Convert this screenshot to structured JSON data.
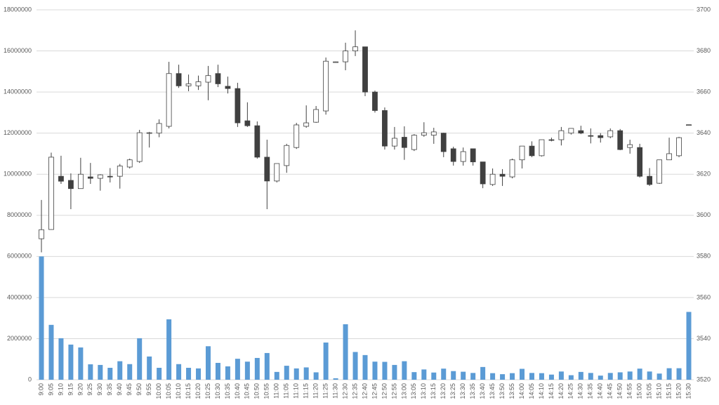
{
  "chart_data": {
    "type": "candlestick",
    "categories": [
      "9:00",
      "9:05",
      "9:10",
      "9:15",
      "9:20",
      "9:25",
      "9:30",
      "9:35",
      "9:40",
      "9:45",
      "9:50",
      "9:55",
      "10:00",
      "10:05",
      "10:10",
      "10:15",
      "10:20",
      "10:25",
      "10:30",
      "10:35",
      "10:40",
      "10:45",
      "10:50",
      "10:55",
      "11:00",
      "11:05",
      "11:10",
      "11:15",
      "11:20",
      "11:25",
      "11:30",
      "12:30",
      "12:35",
      "12:40",
      "12:45",
      "12:50",
      "12:55",
      "13:00",
      "13:05",
      "13:10",
      "13:15",
      "13:20",
      "13:25",
      "13:30",
      "13:35",
      "13:40",
      "13:45",
      "13:50",
      "13:55",
      "14:00",
      "14:05",
      "14:10",
      "14:15",
      "14:20",
      "14:25",
      "14:30",
      "14:35",
      "14:40",
      "14:45",
      "14:50",
      "14:55",
      "15:00",
      "15:05",
      "15:10",
      "15:15",
      "15:20",
      "15:30"
    ],
    "volume": {
      "color": "#5b9bd5",
      "values": [
        6000000,
        2670000,
        2020000,
        1710000,
        1570000,
        750000,
        720000,
        580000,
        900000,
        760000,
        2020000,
        1130000,
        580000,
        2940000,
        760000,
        580000,
        550000,
        1630000,
        820000,
        650000,
        1020000,
        880000,
        1060000,
        1300000,
        380000,
        680000,
        550000,
        600000,
        360000,
        1810000,
        70000,
        2700000,
        1350000,
        1200000,
        880000,
        870000,
        720000,
        900000,
        370000,
        500000,
        350000,
        540000,
        420000,
        390000,
        330000,
        620000,
        320000,
        270000,
        320000,
        530000,
        330000,
        320000,
        250000,
        400000,
        220000,
        380000,
        330000,
        200000,
        330000,
        360000,
        400000,
        540000,
        400000,
        300000,
        560000,
        560000,
        3300000
      ]
    },
    "ohlc": {
      "up_color": "#ffffff",
      "down_color": "#404040",
      "line_color": "#404040",
      "open": [
        3588.6,
        3593.1,
        3619,
        3617,
        3613,
        3618.7,
        3618,
        3619,
        3619,
        3623.5,
        3626.2,
        3640,
        3640,
        3643.3,
        3669,
        3663,
        3663,
        3664.8,
        3669,
        3662.8,
        3661.7,
        3646,
        3643.6,
        3628.3,
        3616.7,
        3624.2,
        3633,
        3643.3,
        3645.3,
        3650.8,
        3674.6,
        3674.7,
        3680,
        3682,
        3660,
        3651,
        3633.7,
        3638,
        3632,
        3639,
        3639,
        3640,
        3632.4,
        3626.2,
        3632.4,
        3626,
        3615,
        3620,
        3618.7,
        3627,
        3633.7,
        3629,
        3636.8,
        3636.8,
        3640,
        3641.2,
        3638.8,
        3638.8,
        3638.2,
        3641.2,
        3633,
        3633,
        3619,
        3615.6,
        3627,
        3629,
        3644
      ],
      "high": [
        3607.5,
        3630.5,
        3629,
        3620.4,
        3628,
        3625.5,
        3620,
        3623,
        3625,
        3627.6,
        3641.6,
        3640.6,
        3646.7,
        3674.7,
        3673.3,
        3668.5,
        3668,
        3672.7,
        3673.3,
        3667.5,
        3664.5,
        3655,
        3645.7,
        3636.8,
        3625.2,
        3634.8,
        3645,
        3653.5,
        3653.2,
        3676.8,
        3674.8,
        3684,
        3690,
        3682,
        3660.7,
        3652.5,
        3643,
        3643.3,
        3639.5,
        3645.3,
        3642.6,
        3640.2,
        3633.4,
        3633,
        3632.4,
        3626,
        3622.8,
        3622.5,
        3627.6,
        3633.7,
        3636,
        3636.8,
        3637.8,
        3643,
        3642.3,
        3643.6,
        3642.3,
        3640,
        3642.3,
        3642,
        3636.8,
        3634.8,
        3623,
        3627,
        3637.8,
        3638.2,
        3644.1
      ],
      "low": [
        3582,
        3593,
        3615.3,
        3603,
        3613,
        3615.3,
        3612,
        3616,
        3613,
        3622.8,
        3625.5,
        3633,
        3638,
        3642.3,
        3662,
        3660.4,
        3661,
        3656,
        3662.4,
        3659.3,
        3643,
        3643,
        3627.6,
        3603,
        3616,
        3620.7,
        3632.3,
        3642.6,
        3645,
        3649,
        3674.5,
        3670.6,
        3677.5,
        3658,
        3650,
        3632,
        3632,
        3627,
        3631.3,
        3638.2,
        3634.8,
        3628.3,
        3624.2,
        3624.2,
        3624.2,
        3613.2,
        3614.3,
        3614.3,
        3618,
        3622.8,
        3628.3,
        3628.6,
        3636,
        3634,
        3639.3,
        3639.5,
        3635,
        3635.4,
        3637.5,
        3631.7,
        3630,
        3618.4,
        3614.3,
        3615.3,
        3627,
        3628.3,
        3644
      ],
      "close": [
        3593,
        3628.3,
        3616.6,
        3613,
        3620,
        3618,
        3619.7,
        3618.7,
        3624,
        3627,
        3640.2,
        3640.2,
        3644.7,
        3669,
        3663,
        3664,
        3665,
        3668,
        3664,
        3661.7,
        3645,
        3643.6,
        3628.3,
        3616.7,
        3625.2,
        3634,
        3644,
        3645,
        3651.5,
        3675,
        3674.7,
        3680,
        3682,
        3660,
        3651,
        3633.7,
        3637.5,
        3633,
        3639,
        3640.2,
        3640.6,
        3631,
        3626.2,
        3631,
        3626,
        3615.3,
        3620,
        3619,
        3627,
        3633.7,
        3629,
        3636.8,
        3636.5,
        3641.2,
        3642.3,
        3640,
        3638.5,
        3637.8,
        3641.2,
        3632,
        3634.4,
        3619,
        3615,
        3627,
        3630,
        3637.8,
        3644.1
      ]
    },
    "ylim": [
      0,
      18000000
    ],
    "yticks": [
      0,
      2000000,
      4000000,
      6000000,
      8000000,
      10000000,
      12000000,
      14000000,
      16000000,
      18000000
    ],
    "y2lim": [
      3520,
      3700
    ],
    "y2ticks": [
      3520,
      3540,
      3560,
      3580,
      3600,
      3620,
      3640,
      3660,
      3680,
      3700
    ],
    "grid": true
  }
}
